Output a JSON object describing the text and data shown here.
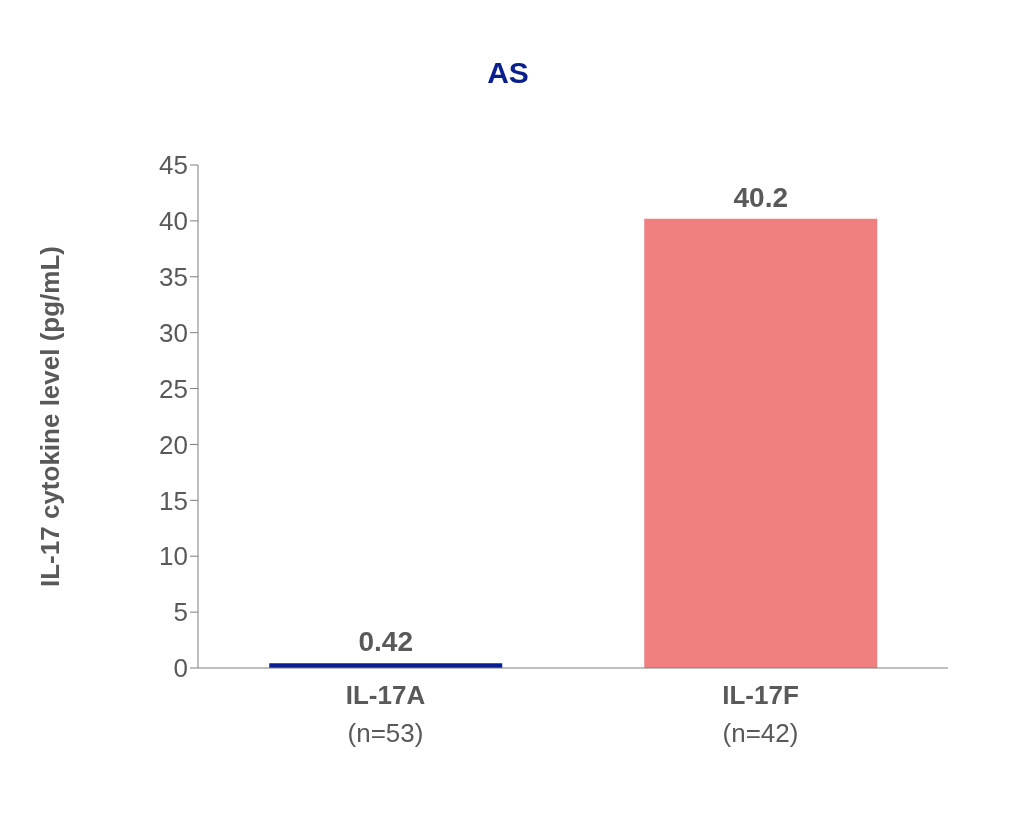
{
  "chart_data": {
    "type": "bar",
    "title": "AS",
    "ylabel": "IL-17 cytokine level (pg/mL)",
    "categories": [
      "IL-17A\n(n=53)",
      "IL-17F\n(n=42)"
    ],
    "values": [
      0.42,
      40.2
    ],
    "colors": [
      "#0a1f8f",
      "#f08080"
    ],
    "ylim": [
      0,
      45
    ],
    "yticks": [
      0,
      5,
      10,
      15,
      20,
      25,
      30,
      35,
      40,
      45
    ],
    "data_labels": true,
    "grid": false,
    "legend": false
  }
}
